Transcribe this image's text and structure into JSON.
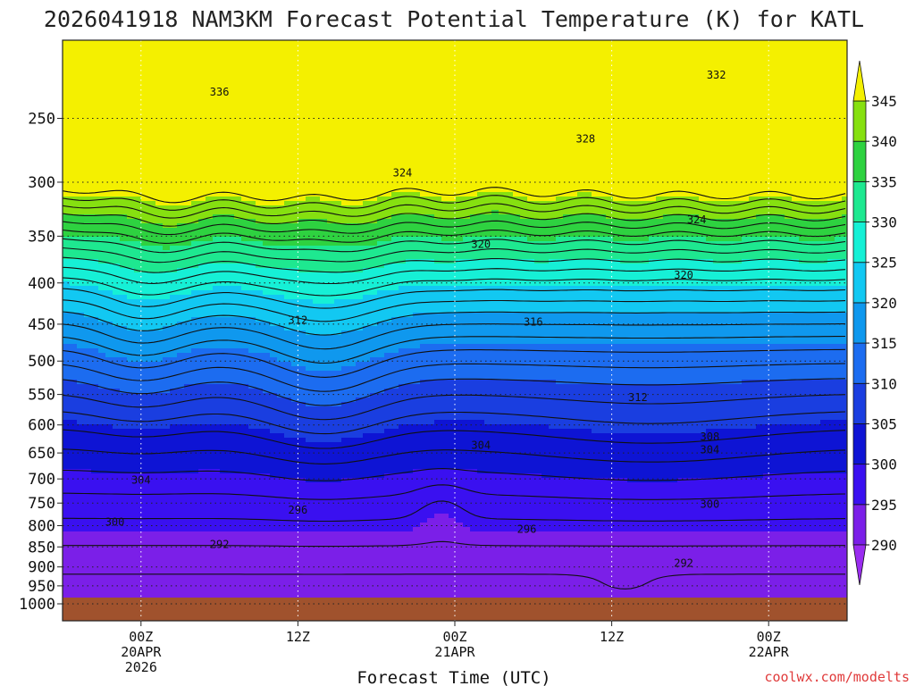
{
  "chart_data": {
    "type": "heatmap",
    "title": "2026041918 NAM3KM Forecast Potential Temperature (K) for KATL",
    "xlabel": "Forecast Time (UTC)",
    "ylabel": "",
    "credit": "coolwx.com/modelts",
    "y_ticks": [
      "250",
      "300",
      "350",
      "400",
      "450",
      "500",
      "550",
      "600",
      "650",
      "700",
      "750",
      "800",
      "850",
      "900",
      "950",
      "1000"
    ],
    "y_values": [
      250,
      300,
      350,
      400,
      450,
      500,
      550,
      600,
      650,
      700,
      750,
      800,
      850,
      900,
      950,
      1000
    ],
    "ylim": [
      200,
      1000
    ],
    "x_ticks": [
      {
        "line1": "00Z",
        "line2": "20APR",
        "line3": "2026",
        "hours": 6
      },
      {
        "line1": "12Z",
        "line2": "",
        "line3": "",
        "hours": 18
      },
      {
        "line1": "00Z",
        "line2": "21APR",
        "line3": "",
        "hours": 30
      },
      {
        "line1": "12Z",
        "line2": "",
        "line3": "",
        "hours": 42
      },
      {
        "line1": "00Z",
        "line2": "22APR",
        "line3": "",
        "hours": 54
      }
    ],
    "xlim": [
      0,
      60
    ],
    "colorbar": {
      "levels": [
        "290",
        "295",
        "300",
        "305",
        "310",
        "315",
        "320",
        "325",
        "330",
        "335",
        "340",
        "345"
      ],
      "colors": [
        "#7b1fe8",
        "#3a10f0",
        "#0e14d4",
        "#1a3ee0",
        "#1c6cf0",
        "#0f98ee",
        "#12c8f2",
        "#16f0d6",
        "#1ee890",
        "#2ed240",
        "#86e010",
        "#ece018"
      ],
      "extend_low_color": "#9a2cf0",
      "extend_high_color": "#f4f000"
    },
    "contour_labels": [
      {
        "text": "336",
        "hours": 12.0,
        "p": 232
      },
      {
        "text": "332",
        "hours": 50.0,
        "p": 221
      },
      {
        "text": "328",
        "hours": 40.0,
        "p": 265
      },
      {
        "text": "324",
        "hours": 26.0,
        "p": 292
      },
      {
        "text": "324",
        "hours": 48.5,
        "p": 334
      },
      {
        "text": "320",
        "hours": 32.0,
        "p": 358
      },
      {
        "text": "320",
        "hours": 47.5,
        "p": 391
      },
      {
        "text": "316",
        "hours": 36.0,
        "p": 447
      },
      {
        "text": "312",
        "hours": 18.0,
        "p": 445
      },
      {
        "text": "312",
        "hours": 44.0,
        "p": 555
      },
      {
        "text": "308",
        "hours": 49.5,
        "p": 621
      },
      {
        "text": "304",
        "hours": 6.0,
        "p": 702
      },
      {
        "text": "304",
        "hours": 32.0,
        "p": 636
      },
      {
        "text": "304",
        "hours": 49.5,
        "p": 644
      },
      {
        "text": "300",
        "hours": 4.0,
        "p": 792
      },
      {
        "text": "300",
        "hours": 49.5,
        "p": 752
      },
      {
        "text": "296",
        "hours": 18.0,
        "p": 765
      },
      {
        "text": "296",
        "hours": 35.5,
        "p": 808
      },
      {
        "text": "292",
        "hours": 12.0,
        "p": 844
      },
      {
        "text": "292",
        "hours": 47.5,
        "p": 890
      }
    ]
  }
}
